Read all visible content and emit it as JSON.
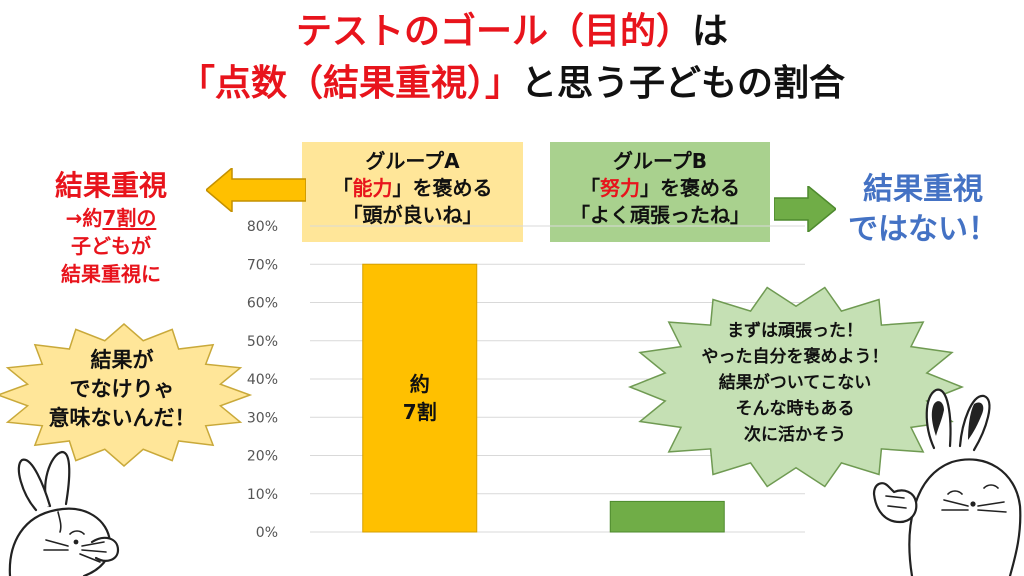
{
  "title": {
    "line1_a": "テストのゴール（目的）",
    "line1_b": "は",
    "line2_a": "「点数（結果重視）」",
    "line2_b": "と思う子どもの割合"
  },
  "group_a": {
    "name": "グループA",
    "line2_open": "「",
    "line2_key": "能力",
    "line2_rest": "」を褒める",
    "line3": "「頭が良いね」"
  },
  "group_b": {
    "name": "グループB",
    "line2_open": "「",
    "line2_key": "努力",
    "line2_rest": "」を褒める",
    "line3": "「よく頑張ったね」"
  },
  "left_note": {
    "heading": "結果重視",
    "line1_prefix": "→約",
    "line1_emph": "7割の",
    "line2": "子どもが",
    "line3": "結果重視に"
  },
  "right_note": {
    "line1": "結果重視",
    "line2": "ではない！"
  },
  "bubble_left": {
    "line1": "結果が",
    "line2": "でなけりゃ",
    "line3": "意味ないんだ！"
  },
  "bubble_right": {
    "line1": "まずは頑張った！",
    "line2": "やった自分を褒めよう！",
    "line3": "結果がついてこない",
    "line4": "そんな時もある",
    "line5": "次に活かそう"
  },
  "colors": {
    "title_red": "#e8141c",
    "group_a_bg": "#ffe699",
    "group_b_bg": "#a9d18e",
    "bar_a": "#ffc000",
    "bar_b": "#70ad47",
    "right_blue": "#4472c4",
    "arrow_left": "#ffc000",
    "arrow_right": "#70ad47",
    "burst_left": "#ffe699",
    "burst_right": "#c5e0b4"
  },
  "icons": {
    "left_arrow": "left-arrow-icon",
    "right_arrow": "right-arrow-icon",
    "left_character": "rabbit-icon",
    "right_character": "rabbit-thumbs-up-icon"
  },
  "chart_data": {
    "type": "bar",
    "categories": [
      "グループA",
      "グループB"
    ],
    "values": [
      70,
      8
    ],
    "ylim": [
      0,
      80
    ],
    "yticks": [
      "0%",
      "10%",
      "20%",
      "30%",
      "40%",
      "50%",
      "60%",
      "70%",
      "80%"
    ],
    "bar_labels": [
      [
        "約",
        "7割"
      ],
      []
    ],
    "grid": true,
    "legend": "none",
    "title": "",
    "xlabel": "",
    "ylabel": ""
  }
}
